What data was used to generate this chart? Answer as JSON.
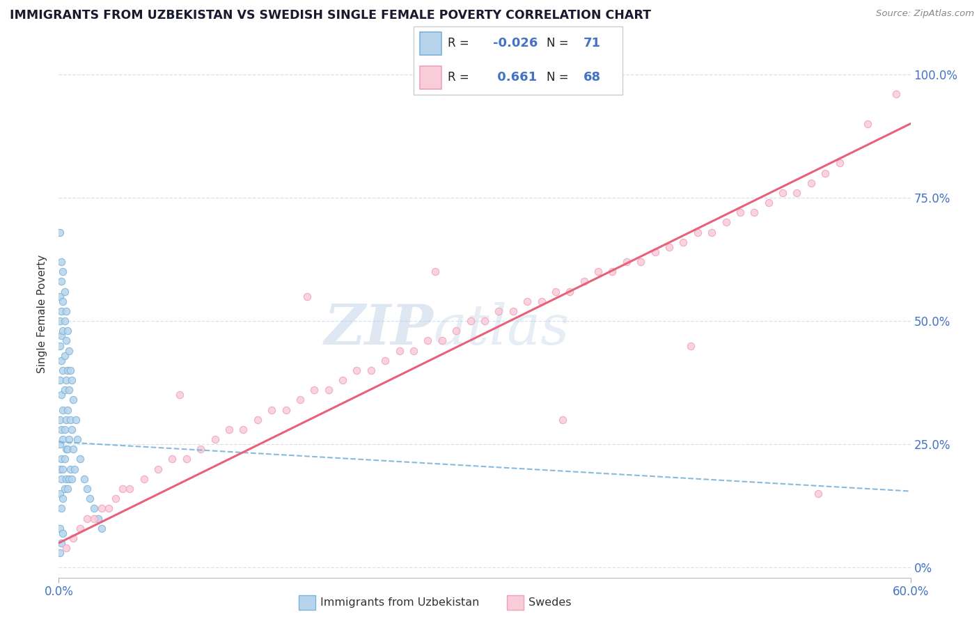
{
  "title": "IMMIGRANTS FROM UZBEKISTAN VS SWEDISH SINGLE FEMALE POVERTY CORRELATION CHART",
  "source": "Source: ZipAtlas.com",
  "ylabel": "Single Female Poverty",
  "watermark_zip": "ZIP",
  "watermark_atlas": "atlas",
  "blue_color": "#7ab3d9",
  "blue_fill": "#b8d4ec",
  "pink_color": "#f0a0b8",
  "pink_fill": "#f8ccd8",
  "trend_blue_color": "#7ab3d9",
  "trend_pink_color": "#e8607a",
  "xlim": [
    0.0,
    0.6
  ],
  "ylim": [
    -0.02,
    1.05
  ],
  "blue_scatter_x": [
    0.001,
    0.001,
    0.001,
    0.001,
    0.001,
    0.001,
    0.001,
    0.001,
    0.001,
    0.001,
    0.002,
    0.002,
    0.002,
    0.002,
    0.002,
    0.002,
    0.002,
    0.002,
    0.002,
    0.002,
    0.003,
    0.003,
    0.003,
    0.003,
    0.003,
    0.003,
    0.003,
    0.003,
    0.003,
    0.004,
    0.004,
    0.004,
    0.004,
    0.004,
    0.004,
    0.004,
    0.005,
    0.005,
    0.005,
    0.005,
    0.005,
    0.005,
    0.006,
    0.006,
    0.006,
    0.006,
    0.006,
    0.007,
    0.007,
    0.007,
    0.007,
    0.008,
    0.008,
    0.008,
    0.009,
    0.009,
    0.009,
    0.01,
    0.01,
    0.011,
    0.012,
    0.013,
    0.015,
    0.018,
    0.02,
    0.022,
    0.025,
    0.028,
    0.03,
    0.002,
    0.001
  ],
  "blue_scatter_y": [
    0.55,
    0.5,
    0.45,
    0.38,
    0.3,
    0.25,
    0.2,
    0.15,
    0.08,
    0.03,
    0.58,
    0.52,
    0.47,
    0.42,
    0.35,
    0.28,
    0.22,
    0.18,
    0.12,
    0.05,
    0.6,
    0.54,
    0.48,
    0.4,
    0.32,
    0.26,
    0.2,
    0.14,
    0.07,
    0.56,
    0.5,
    0.43,
    0.36,
    0.28,
    0.22,
    0.16,
    0.52,
    0.46,
    0.38,
    0.3,
    0.24,
    0.18,
    0.48,
    0.4,
    0.32,
    0.24,
    0.16,
    0.44,
    0.36,
    0.26,
    0.18,
    0.4,
    0.3,
    0.2,
    0.38,
    0.28,
    0.18,
    0.34,
    0.24,
    0.2,
    0.3,
    0.26,
    0.22,
    0.18,
    0.16,
    0.14,
    0.12,
    0.1,
    0.08,
    0.62,
    0.68
  ],
  "pink_scatter_x": [
    0.005,
    0.01,
    0.015,
    0.02,
    0.025,
    0.03,
    0.035,
    0.04,
    0.045,
    0.05,
    0.06,
    0.07,
    0.08,
    0.09,
    0.1,
    0.11,
    0.12,
    0.13,
    0.14,
    0.15,
    0.16,
    0.17,
    0.18,
    0.19,
    0.2,
    0.21,
    0.22,
    0.23,
    0.24,
    0.25,
    0.26,
    0.27,
    0.28,
    0.29,
    0.3,
    0.31,
    0.32,
    0.33,
    0.34,
    0.35,
    0.36,
    0.37,
    0.38,
    0.39,
    0.4,
    0.41,
    0.42,
    0.43,
    0.44,
    0.45,
    0.46,
    0.47,
    0.48,
    0.49,
    0.5,
    0.51,
    0.52,
    0.53,
    0.54,
    0.55,
    0.57,
    0.59,
    0.085,
    0.175,
    0.265,
    0.355,
    0.445,
    0.535
  ],
  "pink_scatter_y": [
    0.04,
    0.06,
    0.08,
    0.1,
    0.1,
    0.12,
    0.12,
    0.14,
    0.16,
    0.16,
    0.18,
    0.2,
    0.22,
    0.22,
    0.24,
    0.26,
    0.28,
    0.28,
    0.3,
    0.32,
    0.32,
    0.34,
    0.36,
    0.36,
    0.38,
    0.4,
    0.4,
    0.42,
    0.44,
    0.44,
    0.46,
    0.46,
    0.48,
    0.5,
    0.5,
    0.52,
    0.52,
    0.54,
    0.54,
    0.56,
    0.56,
    0.58,
    0.6,
    0.6,
    0.62,
    0.62,
    0.64,
    0.65,
    0.66,
    0.68,
    0.68,
    0.7,
    0.72,
    0.72,
    0.74,
    0.76,
    0.76,
    0.78,
    0.8,
    0.82,
    0.9,
    0.96,
    0.35,
    0.55,
    0.6,
    0.3,
    0.45,
    0.15
  ],
  "blue_trend_x": [
    0.0,
    0.6
  ],
  "blue_trend_y": [
    0.255,
    0.155
  ],
  "pink_trend_x": [
    0.0,
    0.6
  ],
  "pink_trend_y": [
    0.05,
    0.9
  ],
  "yticks": [
    0.0,
    0.25,
    0.5,
    0.75,
    1.0
  ],
  "ytick_labels_right": [
    "0%",
    "25.0%",
    "50.0%",
    "75.0%",
    "100.0%"
  ],
  "xtick_vals": [
    0.0,
    0.6
  ],
  "xtick_labels": [
    "0.0%",
    "60.0%"
  ],
  "tick_color": "#4472c4",
  "grid_color": "#d0dff0",
  "title_color": "#1a1a2e",
  "source_color": "#888888",
  "legend_box_color": "#e8e8e8"
}
